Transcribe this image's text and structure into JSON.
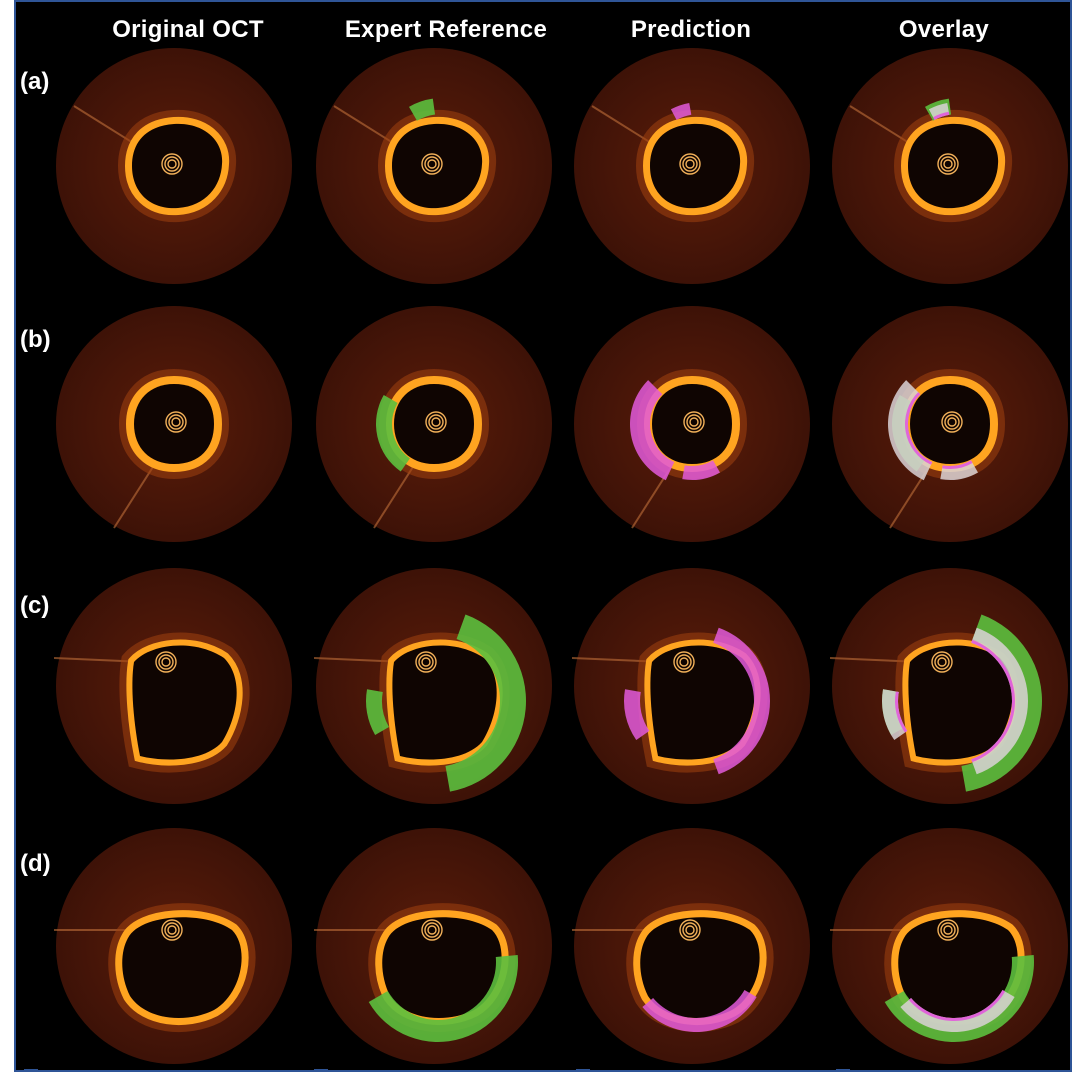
{
  "figure": {
    "columns": [
      "Original OCT",
      "Expert Reference",
      "Prediction",
      "Overlay"
    ],
    "rows": [
      "(a)",
      "(b)",
      "(c)",
      "(d)"
    ]
  },
  "colors": {
    "background": "#000000",
    "frame_border": "#2f5597",
    "tissue_outer": "#3d1207",
    "tissue_wall": "#ffa420",
    "lumen": "#0f0502",
    "expert_annotation": "#5cbf3e",
    "prediction_annotation": "#e25adb",
    "overlap": "#d9d2d6"
  }
}
